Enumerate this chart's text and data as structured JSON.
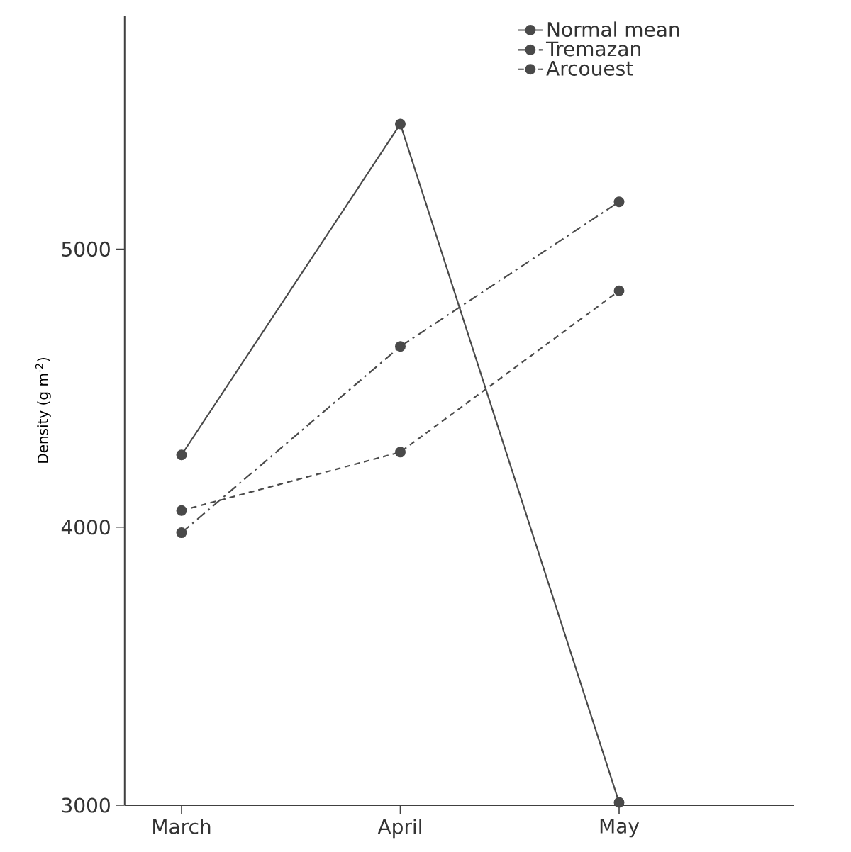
{
  "chart_data": {
    "type": "line",
    "ylabel": "Density (g m$^{-2}$)",
    "categories": [
      "March",
      "April",
      "May"
    ],
    "series": [
      {
        "name": "Normal mean",
        "color": "#4a4a4a",
        "line_style": "solid",
        "values": [
          4260,
          5450,
          3010
        ]
      },
      {
        "name": "Tremazan",
        "color": "#4a4a4a",
        "line_style": "dashdot",
        "values": [
          3980,
          4650,
          5170
        ]
      },
      {
        "name": "Arcouest",
        "color": "#4a4a4a",
        "line_style": "dashed",
        "values": [
          4060,
          4270,
          4850
        ]
      }
    ],
    "ylim": [
      3000,
      5840
    ],
    "yticks": [
      3000,
      4000,
      5000
    ],
    "marker": "circle",
    "legend": "top right",
    "grid": false
  }
}
